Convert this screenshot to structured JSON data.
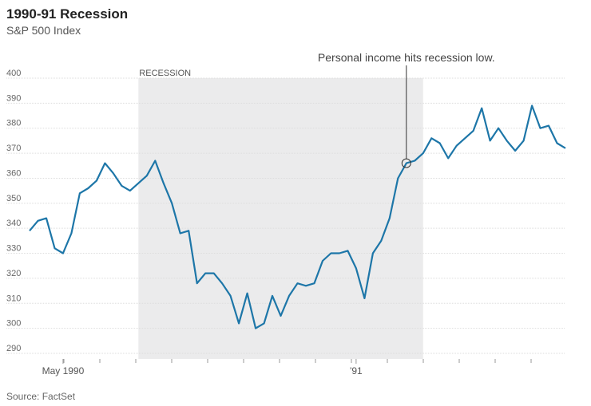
{
  "chart_data": {
    "type": "line",
    "title": "1990-91 Recession",
    "subtitle": "S&P 500 Index",
    "source": "Source: FactSet",
    "categories": [
      null,
      null,
      null,
      null,
      "May 1990",
      null,
      null,
      null,
      null,
      null,
      null,
      null,
      null,
      null,
      null,
      null,
      null,
      null,
      null,
      null,
      null,
      null,
      null,
      null,
      null,
      null,
      null,
      null,
      null,
      null,
      null,
      null,
      null,
      null,
      null,
      null,
      null,
      null,
      null,
      "'91",
      null,
      null,
      null,
      null,
      null,
      null,
      null,
      null,
      null,
      null,
      null,
      null,
      null,
      null,
      null,
      null,
      null,
      null,
      null,
      null,
      null,
      null,
      null,
      null,
      null
    ],
    "series": [
      {
        "name": "S&P 500",
        "color": "#1d76a8",
        "values": [
          339,
          343,
          344,
          332,
          330,
          338,
          354,
          356,
          359,
          366,
          362,
          357,
          355,
          358,
          361,
          367,
          358,
          350,
          338,
          339,
          318,
          322,
          322,
          318,
          313,
          302,
          314,
          300,
          302,
          313,
          305,
          313,
          318,
          317,
          318,
          327,
          330,
          330,
          331,
          324,
          312,
          330,
          335,
          344,
          360,
          366,
          367,
          370,
          376,
          374,
          368,
          373,
          376,
          379,
          388,
          375,
          380,
          375,
          371,
          375,
          389,
          380,
          381,
          374,
          372
        ]
      }
    ],
    "ylim": [
      290,
      400
    ],
    "yticks": [
      290,
      300,
      310,
      320,
      330,
      340,
      350,
      360,
      370,
      380,
      390,
      400
    ],
    "grid": true,
    "shade": {
      "label": "RECESSION",
      "from": 13,
      "to": 47
    },
    "annotations": [
      {
        "text": "Personal income hits recession low.",
        "index": 45
      }
    ]
  }
}
